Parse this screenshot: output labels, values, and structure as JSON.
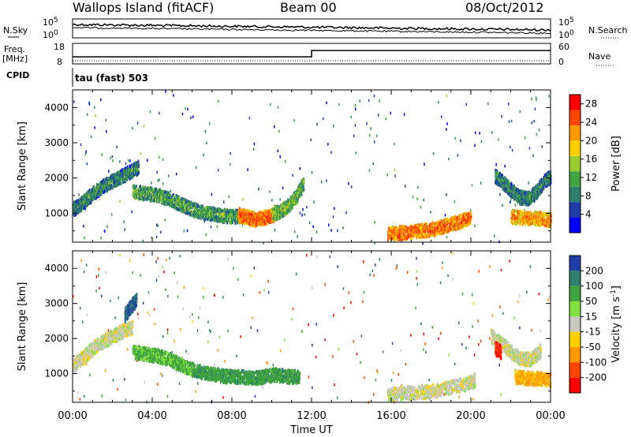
{
  "header": {
    "title": "Wallops Island (fitACF)",
    "beam": "Beam 00",
    "date": "08/Oct/2012"
  },
  "status_strip": {
    "nsky_label": "N.Sky",
    "nsearch_label": "N.Search",
    "noise_ticks_left": [
      "10^5",
      "10^0"
    ],
    "noise_ticks_right": [
      "10^5",
      "10^0"
    ],
    "freq_label": "Freq.",
    "freq_unit": "[MHz]",
    "freq_ticks": [
      "18",
      "8"
    ],
    "nave_label": "Nave",
    "nave_ticks": [
      "60",
      "0"
    ],
    "cpid_label": "CPID",
    "cpid_value": "tau (fast) 503"
  },
  "chart_data": [
    {
      "type": "heatmap",
      "panel": "power",
      "ylabel": "Slant Range [km]",
      "yticks": [
        "1000",
        "2000",
        "3000",
        "4000"
      ],
      "ylim": [
        180,
        4500
      ],
      "xlim": [
        0,
        24
      ],
      "colorbar": {
        "label": "Power [dB]",
        "ticks": [
          "4",
          "8",
          "12",
          "16",
          "20",
          "24",
          "28"
        ],
        "range": [
          0,
          30
        ],
        "colors": [
          "#0000ff",
          "#1f3fa8",
          "#2f7f6f",
          "#3fa33f",
          "#9acd32",
          "#ffd000",
          "#ff9900",
          "#ff4400",
          "#ff0000"
        ]
      },
      "features": [
        {
          "x": [
            0.0,
            0.3,
            0.6,
            1.0,
            1.5,
            2.0,
            2.5,
            3.0,
            3.3
          ],
          "y": [
            1150,
            1250,
            1400,
            1600,
            1800,
            1950,
            2100,
            2250,
            2350
          ],
          "db": 10
        },
        {
          "x": [
            3.0,
            3.6,
            4.2,
            4.8,
            5.4,
            6.0,
            6.6,
            7.2,
            7.8,
            8.4
          ],
          "y": [
            1650,
            1600,
            1550,
            1450,
            1300,
            1150,
            1050,
            1000,
            950,
            950
          ],
          "db": 12
        },
        {
          "x": [
            8.3,
            8.6,
            8.9,
            9.2,
            9.5,
            9.8,
            10.1
          ],
          "y": [
            1000,
            950,
            900,
            850,
            900,
            950,
            1000
          ],
          "db": 25
        },
        {
          "x": [
            10.0,
            10.4,
            10.8,
            11.2,
            11.6
          ],
          "y": [
            1000,
            1100,
            1250,
            1500,
            1900
          ],
          "db": 14
        },
        {
          "x": [
            15.8,
            16.4,
            17.0,
            17.6,
            18.2,
            18.8,
            19.4,
            20.0
          ],
          "y": [
            450,
            480,
            500,
            550,
            600,
            700,
            800,
            900
          ],
          "db": 24
        },
        {
          "x": [
            21.2,
            21.6,
            22.0,
            22.4,
            22.8,
            23.2,
            23.6,
            24.0
          ],
          "y": [
            2100,
            1900,
            1700,
            1500,
            1450,
            1600,
            1900,
            2100
          ],
          "db": 10
        },
        {
          "x": [
            22.0,
            22.6,
            23.2,
            23.8,
            24.0
          ],
          "y": [
            950,
            900,
            900,
            850,
            850
          ],
          "db": 22
        }
      ]
    },
    {
      "type": "heatmap",
      "panel": "velocity",
      "ylabel": "Slant Range [km]",
      "yticks": [
        "1000",
        "2000",
        "3000",
        "4000"
      ],
      "ylim": [
        180,
        4500
      ],
      "xlim": [
        0,
        24
      ],
      "xticks": [
        "00:00",
        "04:00",
        "08:00",
        "12:00",
        "16:00",
        "20:00",
        "00:00"
      ],
      "xlabel": "Time UT",
      "colorbar": {
        "label": "Velocity [m s^-1]",
        "ticks": [
          "200",
          "100",
          "50",
          "15",
          "-15",
          "-50",
          "-100",
          "-200"
        ],
        "colors": [
          "#1f3fa8",
          "#2f7f6f",
          "#3fa33f",
          "#80e040",
          "#c8c8c0",
          "#ffd000",
          "#ff9900",
          "#ff4400",
          "#ff0000"
        ]
      },
      "features": [
        {
          "x": [
            0.0,
            0.5,
            1.0,
            1.5,
            2.0,
            2.5,
            3.0
          ],
          "y": [
            1250,
            1500,
            1750,
            1950,
            2100,
            2250,
            2350
          ],
          "v": 0
        },
        {
          "x": [
            3.0,
            3.6,
            4.2,
            4.8,
            5.4,
            6.0
          ],
          "y": [
            1650,
            1600,
            1550,
            1450,
            1300,
            1150
          ],
          "v": 40
        },
        {
          "x": [
            6.0,
            6.6,
            7.2,
            7.8,
            8.4,
            9.0,
            9.6,
            10.2,
            10.8,
            11.4
          ],
          "y": [
            1150,
            1050,
            1000,
            950,
            950,
            900,
            950,
            1000,
            950,
            950
          ],
          "v": 60
        },
        {
          "x": [
            2.6,
            2.9,
            3.2
          ],
          "y": [
            2700,
            2950,
            3150
          ],
          "v": 150
        },
        {
          "x": [
            15.8,
            16.6,
            17.4,
            18.2,
            19.0,
            19.8,
            20.2
          ],
          "y": [
            450,
            480,
            500,
            550,
            650,
            750,
            850
          ],
          "v": 0
        },
        {
          "x": [
            21.0,
            21.5,
            22.0,
            22.5,
            23.0,
            23.5
          ],
          "y": [
            2100,
            1900,
            1650,
            1450,
            1450,
            1700
          ],
          "v": 0
        },
        {
          "x": [
            21.2,
            21.5
          ],
          "y": [
            1750,
            1650
          ],
          "v": -150
        },
        {
          "x": [
            22.2,
            22.8,
            23.4,
            24.0
          ],
          "y": [
            950,
            900,
            900,
            850
          ],
          "v": -40
        }
      ]
    }
  ]
}
